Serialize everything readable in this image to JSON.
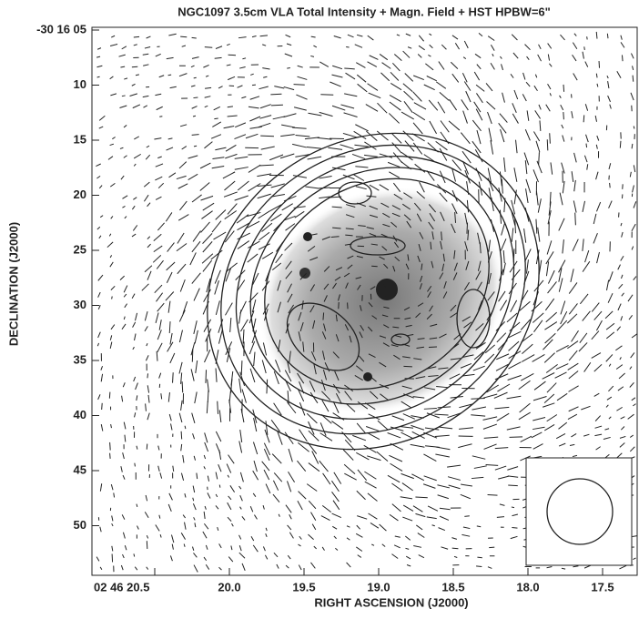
{
  "title": "NGC1097  3.5cm  VLA   Total Intensity + Magn. Field + HST   HPBW=6\"",
  "x_axis": {
    "label": "RIGHT ASCENSION (J2000)",
    "ticks": [
      "02 46 20.5",
      "20.0",
      "19.5",
      "19.0",
      "18.5",
      "18.0",
      "17.5"
    ]
  },
  "y_axis": {
    "label": "DECLINATION (J2000)",
    "ticks": [
      "-30 16 05",
      "10",
      "15",
      "20",
      "25",
      "30",
      "35",
      "40",
      "45",
      "50"
    ]
  }
}
